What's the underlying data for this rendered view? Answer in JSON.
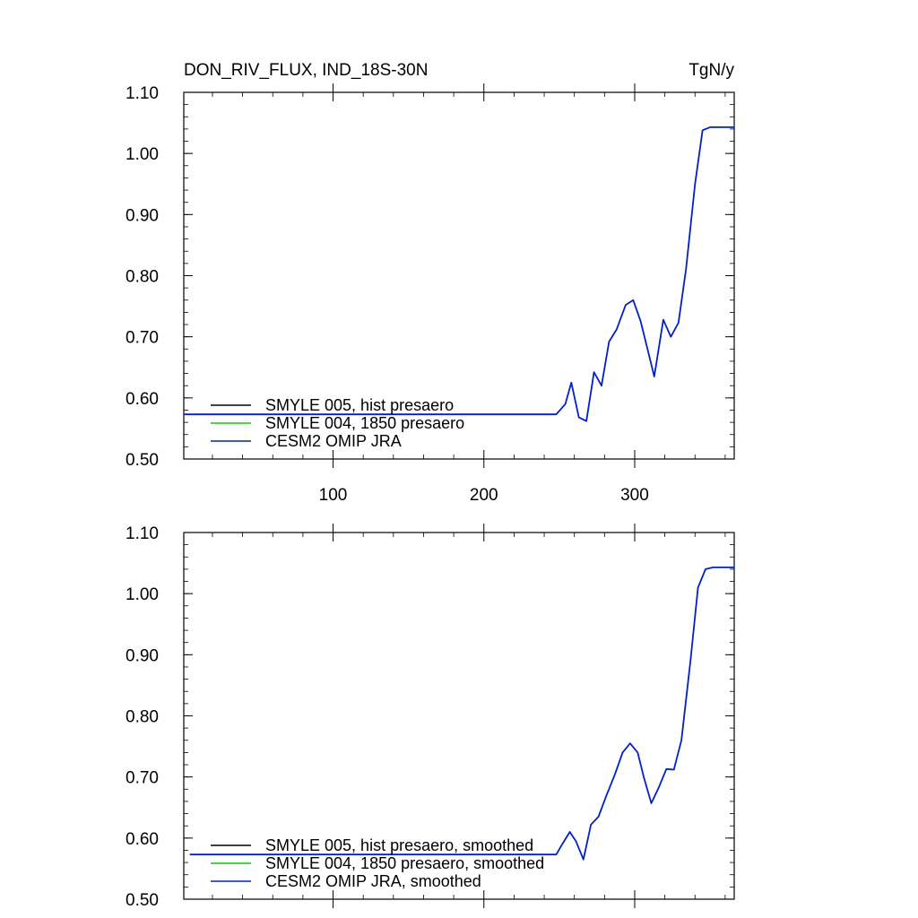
{
  "chart_data": [
    {
      "type": "line",
      "title": "DON_RIV_FLUX, IND_18S-30N",
      "units": "TgN/y",
      "xlim": [
        1,
        366
      ],
      "ylim": [
        0.5,
        1.1
      ],
      "xticks": [
        100,
        200,
        300
      ],
      "xtick_labels": [
        "100",
        "200",
        "300"
      ],
      "yticks": [
        0.5,
        0.6,
        0.7,
        0.8,
        0.9,
        1.0,
        1.1
      ],
      "ytick_labels": [
        "0.50",
        "0.60",
        "0.70",
        "0.80",
        "0.90",
        "1.00",
        "1.10"
      ],
      "legend_position": "bottom-left",
      "series": [
        {
          "name": "SMYLE 005, hist presaero",
          "color": "#000000",
          "x": [],
          "y": []
        },
        {
          "name": "SMYLE 004, 1850 presaero",
          "color": "#00d000",
          "x": [],
          "y": []
        },
        {
          "name": "CESM2 OMIP JRA",
          "color": "#0020c8",
          "x": [
            1,
            248,
            254,
            258,
            263,
            268,
            273,
            278,
            283,
            288,
            294,
            299,
            304,
            309,
            313,
            319,
            324,
            329,
            334,
            340,
            345,
            350,
            366
          ],
          "y": [
            0.573,
            0.573,
            0.59,
            0.625,
            0.568,
            0.562,
            0.642,
            0.62,
            0.692,
            0.712,
            0.752,
            0.76,
            0.725,
            0.675,
            0.635,
            0.728,
            0.7,
            0.723,
            0.81,
            0.95,
            1.038,
            1.043,
            1.043
          ]
        }
      ]
    },
    {
      "type": "line",
      "title": "",
      "units": "",
      "xlim": [
        1,
        366
      ],
      "ylim": [
        0.5,
        1.1
      ],
      "xticks": [
        100,
        200,
        300
      ],
      "xtick_labels": [],
      "yticks": [
        0.5,
        0.6,
        0.7,
        0.8,
        0.9,
        1.0,
        1.1
      ],
      "ytick_labels": [
        "0.50",
        "0.60",
        "0.70",
        "0.80",
        "0.90",
        "1.00",
        "1.10"
      ],
      "legend_position": "bottom-left",
      "series": [
        {
          "name": "SMYLE 005, hist presaero, smoothed",
          "color": "#000000",
          "x": [],
          "y": []
        },
        {
          "name": "SMYLE 004, 1850 presaero, smoothed",
          "color": "#00d000",
          "x": [],
          "y": []
        },
        {
          "name": "CESM2 OMIP JRA, smoothed",
          "color": "#0020c8",
          "x": [
            5,
            248,
            252,
            257,
            261,
            266,
            271,
            276,
            281,
            287,
            292,
            297,
            302,
            306,
            311,
            316,
            321,
            326,
            331,
            337,
            342,
            347,
            352,
            366
          ],
          "y": [
            0.573,
            0.573,
            0.59,
            0.61,
            0.595,
            0.565,
            0.622,
            0.635,
            0.668,
            0.705,
            0.74,
            0.755,
            0.74,
            0.7,
            0.657,
            0.683,
            0.713,
            0.712,
            0.76,
            0.89,
            1.01,
            1.04,
            1.043,
            1.043
          ]
        }
      ]
    }
  ]
}
